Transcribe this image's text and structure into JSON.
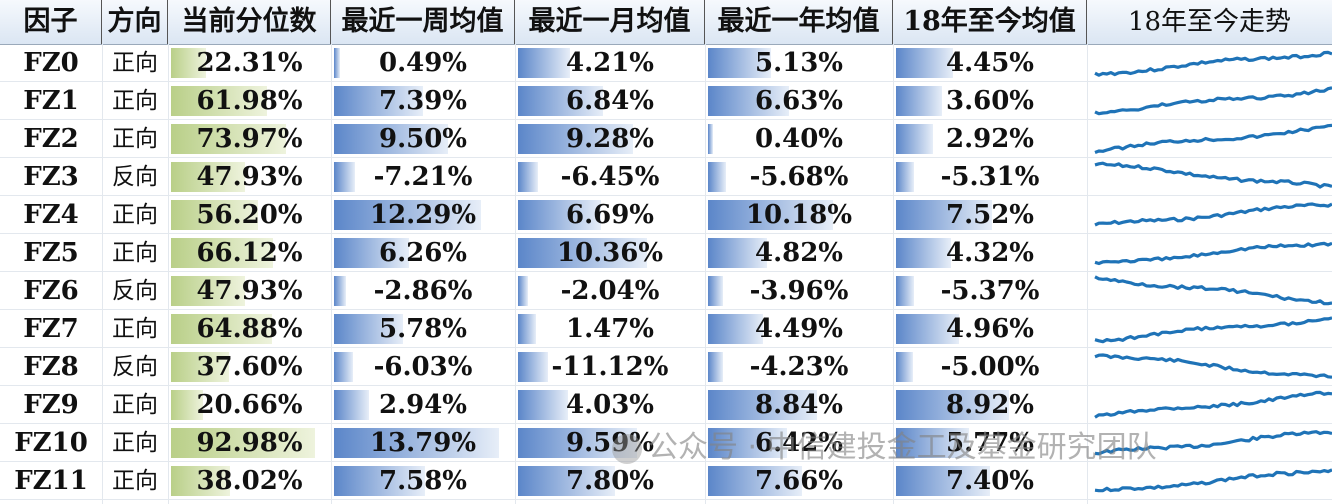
{
  "headers": [
    "因子",
    "方向",
    "当前分位数",
    "最近一周均值",
    "最近一月均值",
    "最近一年均值",
    "18年至今均值",
    "18年至今走势"
  ],
  "watermark": "公众号 · 中信建投金工及基金研究团队",
  "colors": {
    "percentile_bar": "#b9cf88",
    "mean_bar": "#5b86c9",
    "trend_line": "#1f73b7"
  },
  "chart_data": {
    "type": "table",
    "columns": [
      "因子",
      "方向",
      "当前分位数",
      "最近一周均值",
      "最近一月均值",
      "最近一年均值",
      "18年至今均值",
      "18年至今走势"
    ],
    "rows": [
      {
        "factor": "FZ0",
        "direction": "正向",
        "pct": "22.31%",
        "pct_value": 22.31,
        "week": "0.49%",
        "week_value": 0.49,
        "month": "4.21%",
        "month_value": 4.21,
        "year": "5.13%",
        "year_value": 5.13,
        "since18": "4.45%",
        "since18_value": 4.45,
        "trend": "up"
      },
      {
        "factor": "FZ1",
        "direction": "正向",
        "pct": "61.98%",
        "pct_value": 61.98,
        "week": "7.39%",
        "week_value": 7.39,
        "month": "6.84%",
        "month_value": 6.84,
        "year": "6.63%",
        "year_value": 6.63,
        "since18": "3.60%",
        "since18_value": 3.6,
        "trend": "up"
      },
      {
        "factor": "FZ2",
        "direction": "正向",
        "pct": "73.97%",
        "pct_value": 73.97,
        "week": "9.50%",
        "week_value": 9.5,
        "month": "9.28%",
        "month_value": 9.28,
        "year": "0.40%",
        "year_value": 0.4,
        "since18": "2.92%",
        "since18_value": 2.92,
        "trend": "up"
      },
      {
        "factor": "FZ3",
        "direction": "反向",
        "pct": "47.93%",
        "pct_value": 47.93,
        "week": "-7.21%",
        "week_value": -7.21,
        "month": "-6.45%",
        "month_value": -6.45,
        "year": "-5.68%",
        "year_value": -5.68,
        "since18": "-5.31%",
        "since18_value": -5.31,
        "trend": "down"
      },
      {
        "factor": "FZ4",
        "direction": "正向",
        "pct": "56.20%",
        "pct_value": 56.2,
        "week": "12.29%",
        "week_value": 12.29,
        "month": "6.69%",
        "month_value": 6.69,
        "year": "10.18%",
        "year_value": 10.18,
        "since18": "7.52%",
        "since18_value": 7.52,
        "trend": "up"
      },
      {
        "factor": "FZ5",
        "direction": "正向",
        "pct": "66.12%",
        "pct_value": 66.12,
        "week": "6.26%",
        "week_value": 6.26,
        "month": "10.36%",
        "month_value": 10.36,
        "year": "4.82%",
        "year_value": 4.82,
        "since18": "4.32%",
        "since18_value": 4.32,
        "trend": "up"
      },
      {
        "factor": "FZ6",
        "direction": "反向",
        "pct": "47.93%",
        "pct_value": 47.93,
        "week": "-2.86%",
        "week_value": -2.86,
        "month": "-2.04%",
        "month_value": -2.04,
        "year": "-3.96%",
        "year_value": -3.96,
        "since18": "-5.37%",
        "since18_value": -5.37,
        "trend": "down"
      },
      {
        "factor": "FZ7",
        "direction": "正向",
        "pct": "64.88%",
        "pct_value": 64.88,
        "week": "5.78%",
        "week_value": 5.78,
        "month": "1.47%",
        "month_value": 1.47,
        "year": "4.49%",
        "year_value": 4.49,
        "since18": "4.96%",
        "since18_value": 4.96,
        "trend": "up"
      },
      {
        "factor": "FZ8",
        "direction": "反向",
        "pct": "37.60%",
        "pct_value": 37.6,
        "week": "-6.03%",
        "week_value": -6.03,
        "month": "-11.12%",
        "month_value": -11.12,
        "year": "-4.23%",
        "year_value": -4.23,
        "since18": "-5.00%",
        "since18_value": -5.0,
        "trend": "down"
      },
      {
        "factor": "FZ9",
        "direction": "正向",
        "pct": "20.66%",
        "pct_value": 20.66,
        "week": "2.94%",
        "week_value": 2.94,
        "month": "4.03%",
        "month_value": 4.03,
        "year": "8.84%",
        "year_value": 8.84,
        "since18": "8.92%",
        "since18_value": 8.92,
        "trend": "up"
      },
      {
        "factor": "FZ10",
        "direction": "正向",
        "pct": "92.98%",
        "pct_value": 92.98,
        "week": "13.79%",
        "week_value": 13.79,
        "month": "9.59%",
        "month_value": 9.59,
        "year": "6.42%",
        "year_value": 6.42,
        "since18": "5.77%",
        "since18_value": 5.77,
        "trend": "up"
      },
      {
        "factor": "FZ11",
        "direction": "正向",
        "pct": "38.02%",
        "pct_value": 38.02,
        "week": "7.58%",
        "week_value": 7.58,
        "month": "7.80%",
        "month_value": 7.8,
        "year": "7.66%",
        "year_value": 7.66,
        "since18": "7.40%",
        "since18_value": 7.4,
        "trend": "up"
      }
    ]
  }
}
